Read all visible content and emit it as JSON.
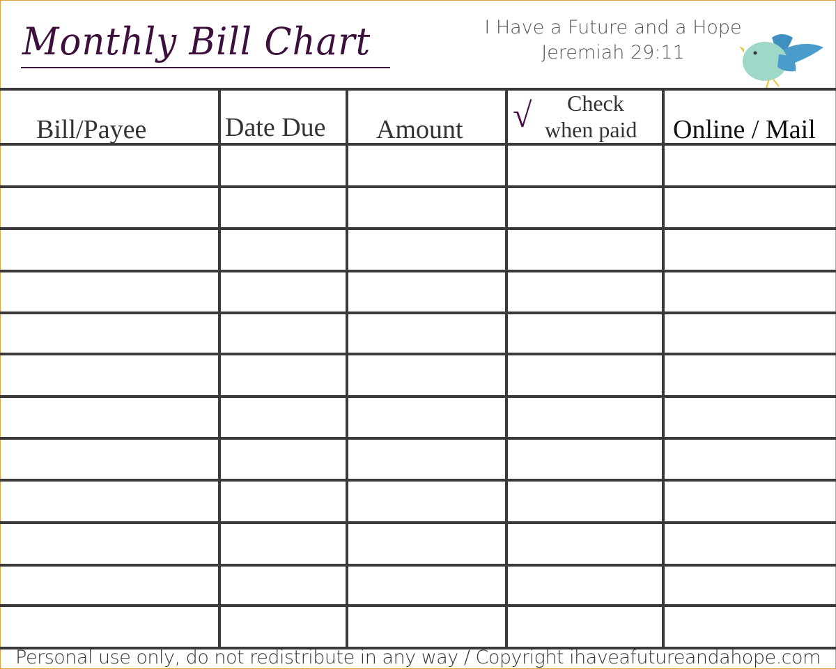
{
  "header": {
    "title": "Monthly Bill Chart",
    "verse_line1": "I Have a Future and a Hope",
    "verse_line2": "Jeremiah 29:11",
    "decoration_icon": "bird-icon"
  },
  "table": {
    "columns": [
      "Bill/Payee",
      "Date Due",
      "Amount",
      "Check when paid",
      "Online / Mail"
    ],
    "check_col_line1": "Check",
    "check_col_line2": "when paid",
    "check_mark": "√",
    "row_count": 12
  },
  "footer": {
    "text": "Personal use only, do not redistribute in any way / Copyright ihaveafutureandahope.com"
  },
  "colors": {
    "title": "#3d0f3d",
    "lines": "#3a3a3a",
    "border": "#e0a040",
    "bird_body": "#9dd8c8",
    "bird_wing": "#3f8fc0"
  }
}
